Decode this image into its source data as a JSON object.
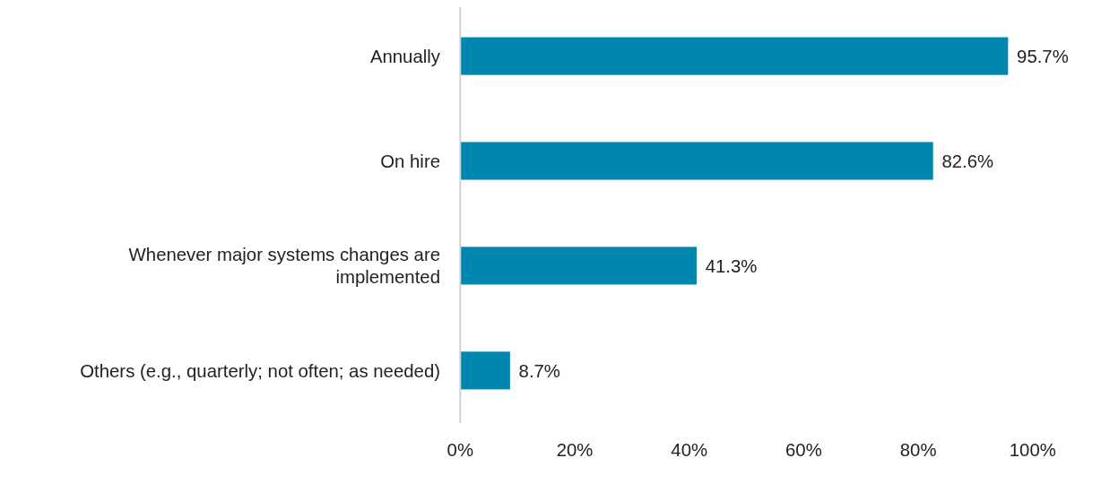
{
  "chart_data": {
    "type": "bar",
    "orientation": "horizontal",
    "categories": [
      "Annually",
      "On hire",
      "Whenever major systems changes are\nimplemented",
      "Others (e.g., quarterly; not often; as needed)"
    ],
    "values": [
      95.7,
      82.6,
      41.3,
      8.7
    ],
    "value_labels": [
      "95.7%",
      "82.6%",
      "41.3%",
      "8.7%"
    ],
    "color": "#0087b0",
    "xlim": [
      0,
      100
    ],
    "xticks": [
      {
        "value": 0,
        "label": "0%"
      },
      {
        "value": 20,
        "label": "20%"
      },
      {
        "value": 40,
        "label": "40%"
      },
      {
        "value": 60,
        "label": "60%"
      },
      {
        "value": 80,
        "label": "80%"
      },
      {
        "value": 100,
        "label": "100%"
      }
    ],
    "grid": false
  }
}
